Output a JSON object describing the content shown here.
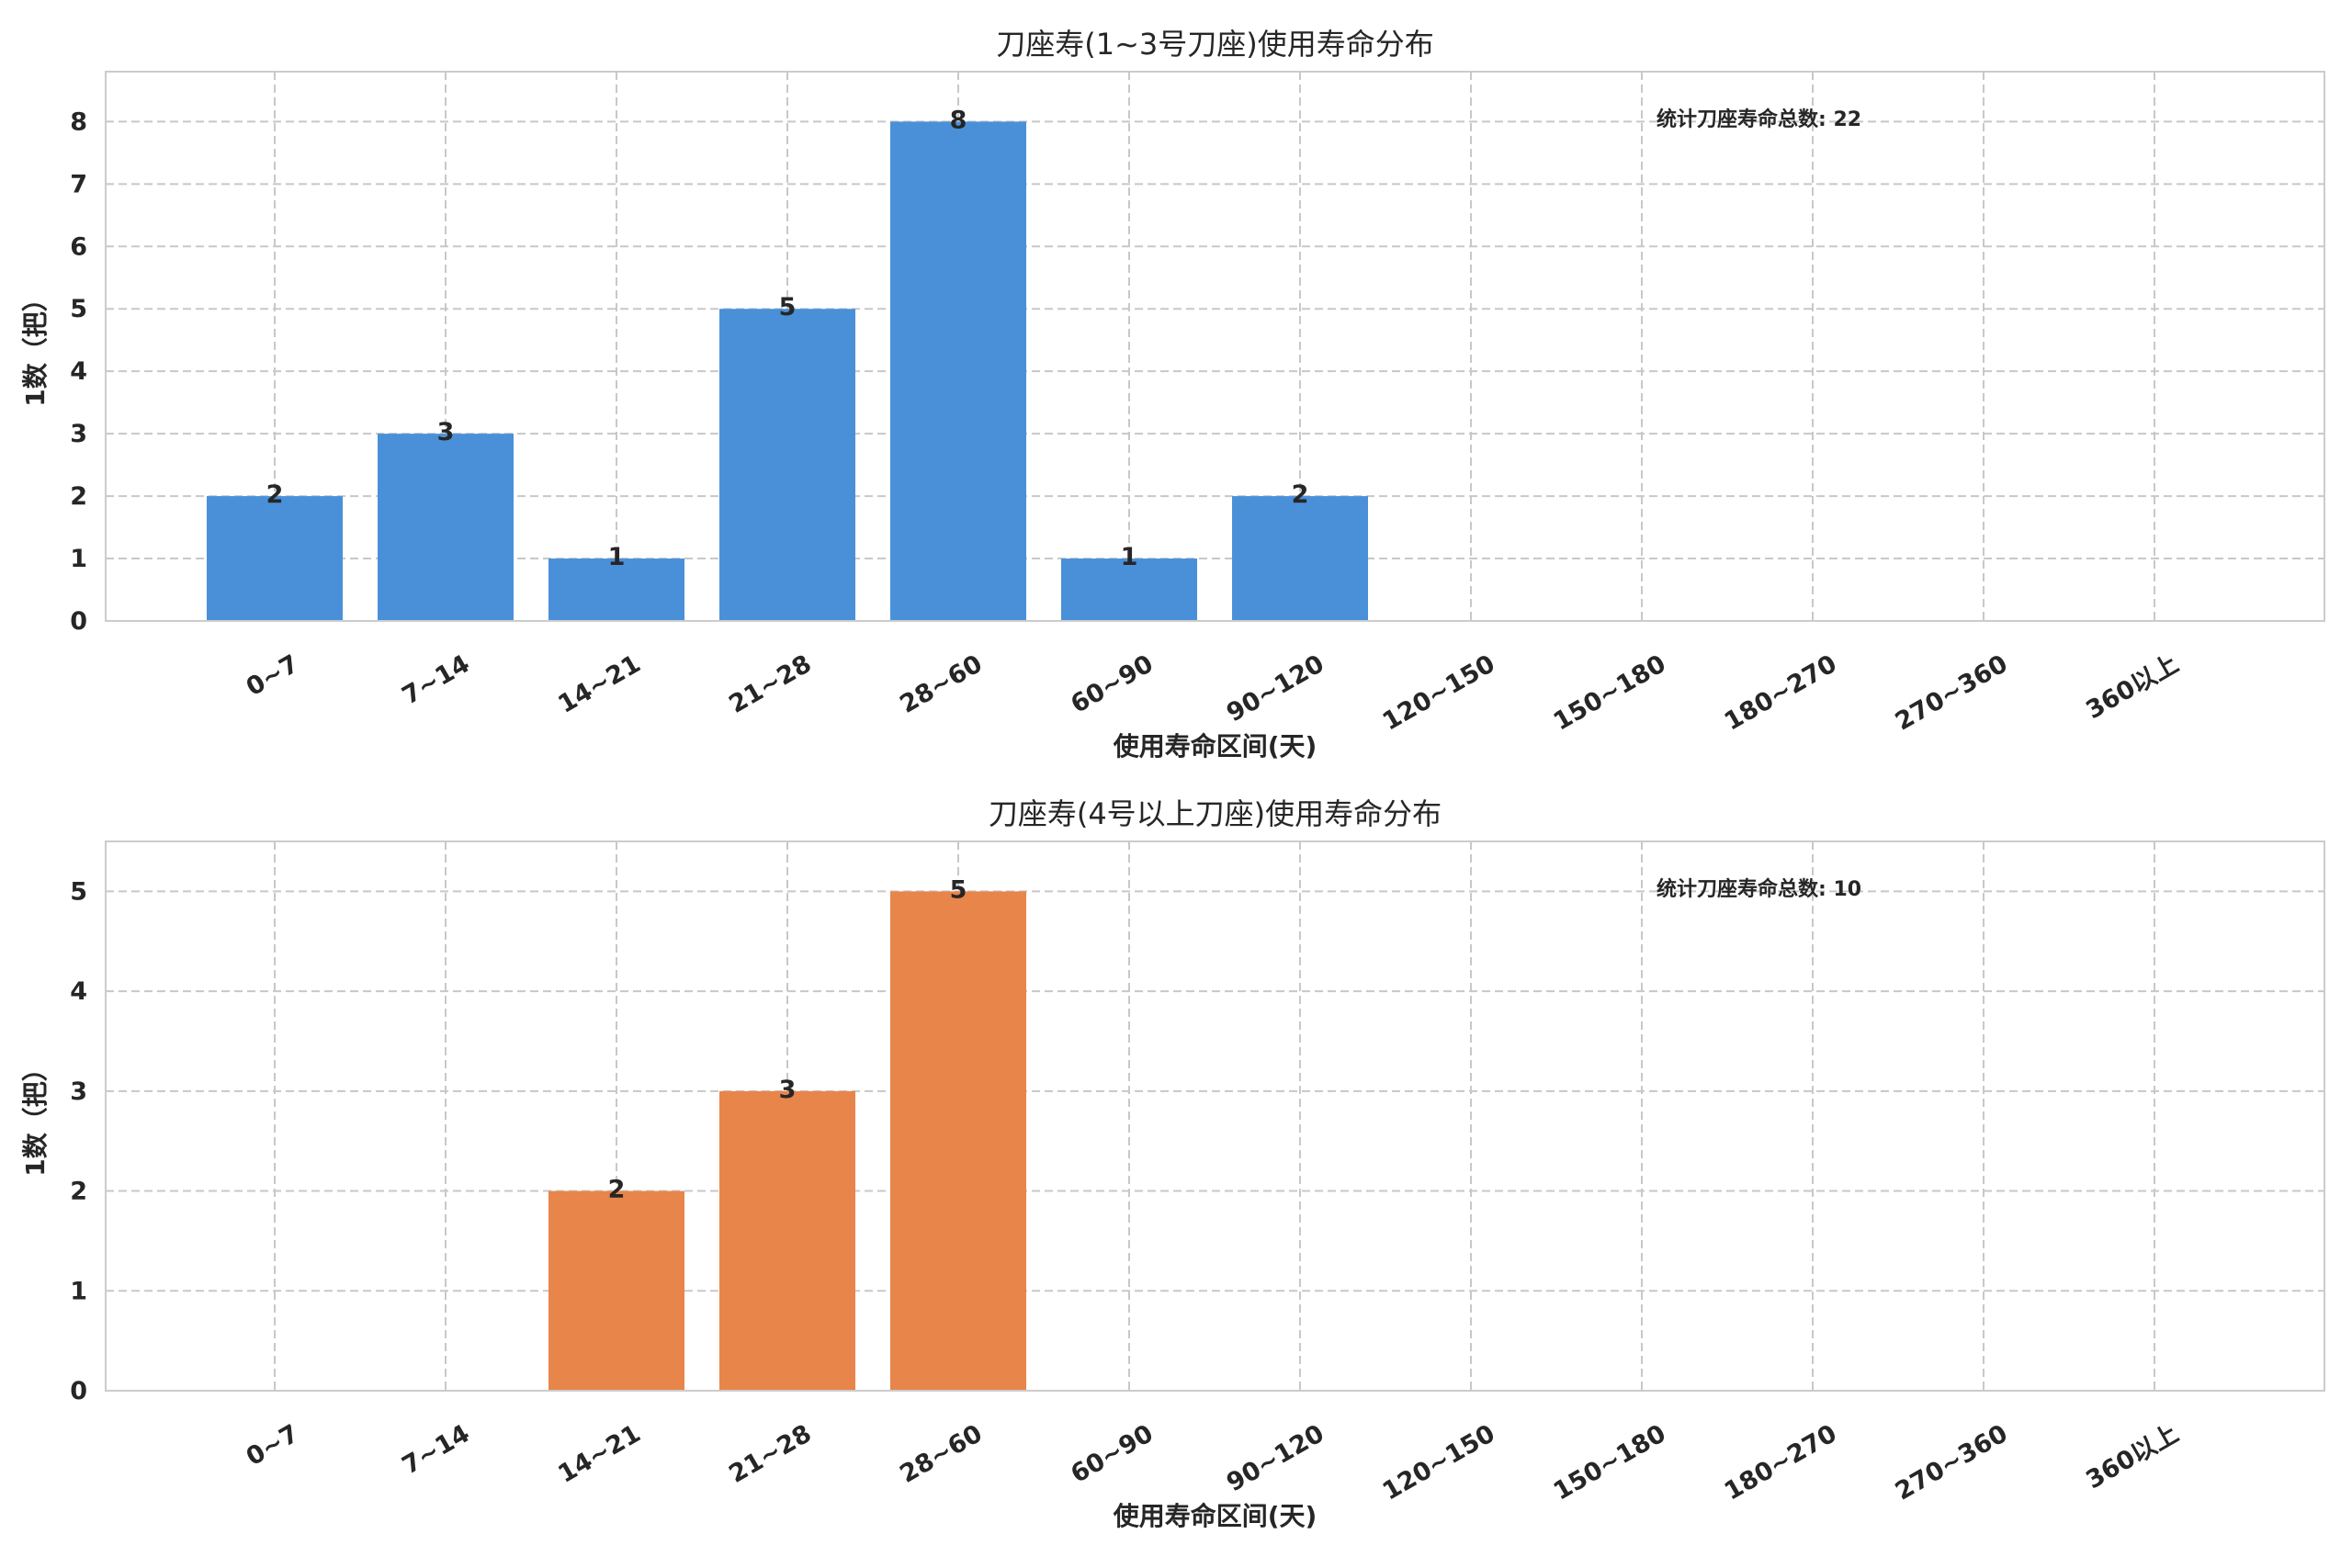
{
  "chart_data": [
    {
      "type": "bar",
      "title": "刀座寿(1~3号刀座)使用寿命分布",
      "xlabel": "使用寿命区间(天)",
      "ylabel": "1数（把）",
      "categories": [
        "0~7",
        "7~14",
        "14~21",
        "21~28",
        "28~60",
        "60~90",
        "90~120",
        "120~150",
        "150~180",
        "180~270",
        "270~360",
        "360以上"
      ],
      "values": [
        2,
        3,
        1,
        5,
        8,
        1,
        2,
        0,
        0,
        0,
        0,
        0
      ],
      "value_labels": [
        "2",
        "3",
        "1",
        "5",
        "8",
        "1",
        "2",
        "",
        "",
        "",
        "",
        ""
      ],
      "yticks": [
        0,
        1,
        2,
        3,
        4,
        5,
        6,
        7,
        8
      ],
      "ylim": [
        0,
        8.8
      ],
      "grid": true,
      "annotation": "统计刀座寿命总数: 22",
      "color": "#4a90d9"
    },
    {
      "type": "bar",
      "title": "刀座寿(4号以上刀座)使用寿命分布",
      "xlabel": "使用寿命区间(天)",
      "ylabel": "1数（把）",
      "categories": [
        "0~7",
        "7~14",
        "14~21",
        "21~28",
        "28~60",
        "60~90",
        "90~120",
        "120~150",
        "150~180",
        "180~270",
        "270~360",
        "360以上"
      ],
      "values": [
        0,
        0,
        2,
        3,
        5,
        0,
        0,
        0,
        0,
        0,
        0,
        0
      ],
      "value_labels": [
        "",
        "",
        "2",
        "3",
        "5",
        "",
        "",
        "",
        "",
        "",
        "",
        ""
      ],
      "yticks": [
        0,
        1,
        2,
        3,
        4,
        5
      ],
      "ylim": [
        0,
        5.5
      ],
      "grid": true,
      "annotation": "统计刀座寿命总数: 10",
      "color": "#e8854a"
    }
  ]
}
